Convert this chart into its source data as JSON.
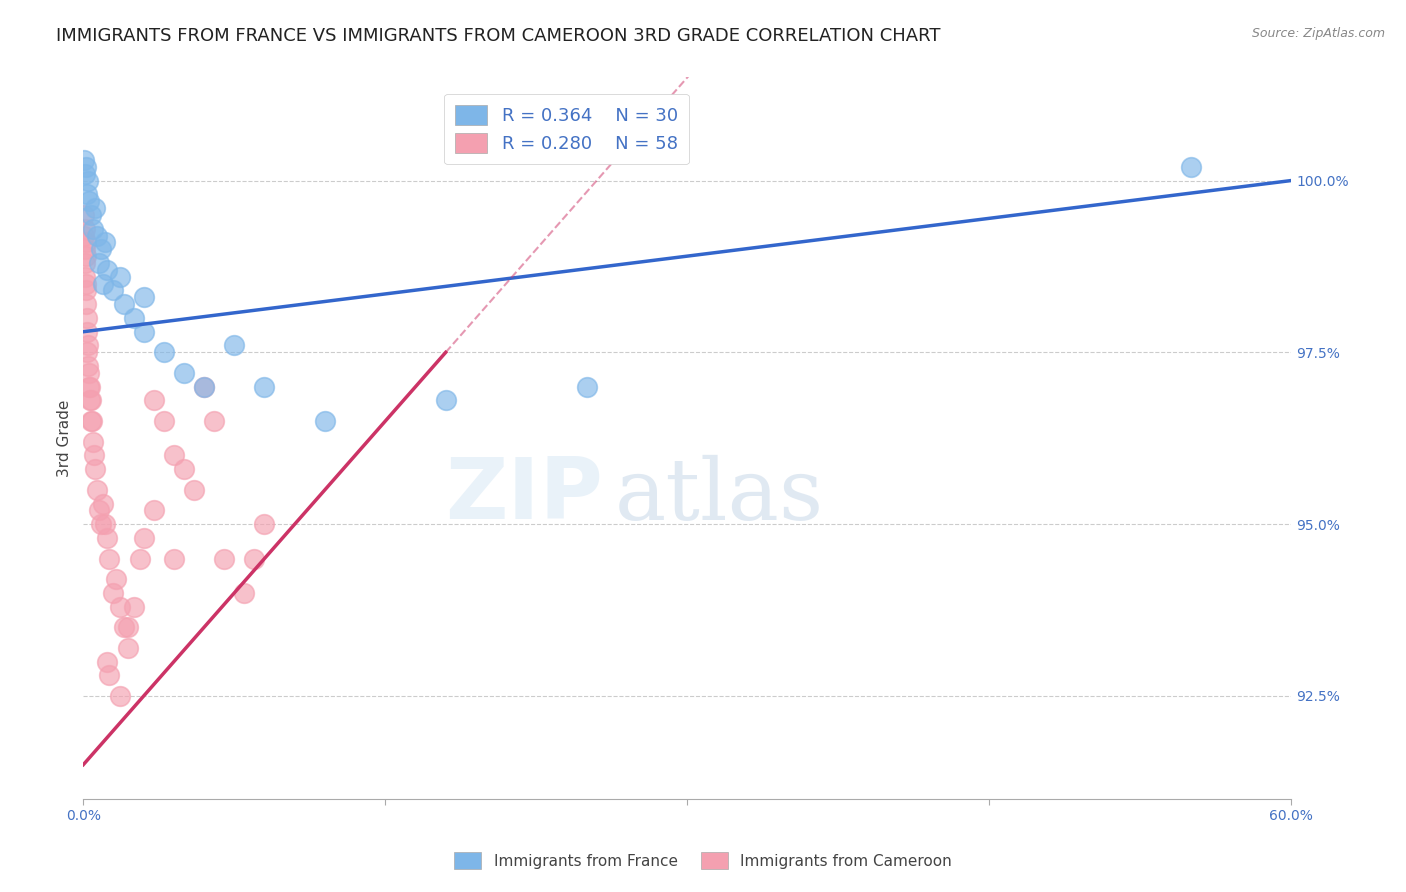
{
  "title": "IMMIGRANTS FROM FRANCE VS IMMIGRANTS FROM CAMEROON 3RD GRADE CORRELATION CHART",
  "source": "Source: ZipAtlas.com",
  "ylabel": "3rd Grade",
  "xlim": [
    0.0,
    60.0
  ],
  "ylim": [
    91.0,
    101.5
  ],
  "y_ticks": [
    92.5,
    95.0,
    97.5,
    100.0
  ],
  "y_tick_labels": [
    "92.5%",
    "95.0%",
    "97.5%",
    "100.0%"
  ],
  "france_color": "#7EB6E8",
  "cameroon_color": "#F4A0B0",
  "france_line_color": "#3366CC",
  "cameroon_line_color": "#CC3366",
  "R_france": 0.364,
  "N_france": 30,
  "R_cameroon": 0.28,
  "N_cameroon": 58,
  "legend_color": "#4472C4",
  "france_x": [
    0.05,
    0.1,
    0.15,
    0.2,
    0.25,
    0.3,
    0.4,
    0.5,
    0.6,
    0.7,
    0.8,
    0.9,
    1.0,
    1.1,
    1.2,
    1.5,
    1.8,
    2.0,
    2.5,
    3.0,
    3.0,
    4.0,
    5.0,
    6.0,
    7.5,
    9.0,
    12.0,
    18.0,
    25.0,
    55.0
  ],
  "france_y": [
    100.3,
    100.1,
    100.2,
    99.8,
    100.0,
    99.7,
    99.5,
    99.3,
    99.6,
    99.2,
    98.8,
    99.0,
    98.5,
    99.1,
    98.7,
    98.4,
    98.6,
    98.2,
    98.0,
    97.8,
    98.3,
    97.5,
    97.2,
    97.0,
    97.6,
    97.0,
    96.5,
    96.8,
    97.0,
    100.2
  ],
  "cameroon_x": [
    0.02,
    0.05,
    0.07,
    0.08,
    0.09,
    0.1,
    0.11,
    0.12,
    0.13,
    0.14,
    0.15,
    0.16,
    0.18,
    0.2,
    0.22,
    0.25,
    0.28,
    0.3,
    0.32,
    0.35,
    0.38,
    0.4,
    0.45,
    0.5,
    0.55,
    0.6,
    0.7,
    0.8,
    0.9,
    1.0,
    1.1,
    1.2,
    1.3,
    1.5,
    1.6,
    1.8,
    2.0,
    2.2,
    2.5,
    2.8,
    3.0,
    3.5,
    4.0,
    4.5,
    5.0,
    5.5,
    6.0,
    7.0,
    8.0,
    9.0,
    1.2,
    1.3,
    1.8,
    2.2,
    3.5,
    4.5,
    6.5,
    8.5
  ],
  "cameroon_y": [
    99.5,
    99.2,
    99.3,
    99.0,
    98.8,
    98.6,
    99.1,
    98.4,
    98.9,
    98.2,
    98.5,
    98.0,
    97.8,
    97.5,
    97.6,
    97.3,
    97.0,
    97.2,
    96.8,
    97.0,
    96.5,
    96.8,
    96.5,
    96.2,
    96.0,
    95.8,
    95.5,
    95.2,
    95.0,
    95.3,
    95.0,
    94.8,
    94.5,
    94.0,
    94.2,
    93.8,
    93.5,
    93.2,
    93.8,
    94.5,
    94.8,
    96.8,
    96.5,
    96.0,
    95.8,
    95.5,
    97.0,
    94.5,
    94.0,
    95.0,
    93.0,
    92.8,
    92.5,
    93.5,
    95.2,
    94.5,
    96.5,
    94.5
  ],
  "france_line_x0": 0.0,
  "france_line_y0": 97.8,
  "france_line_x1": 60.0,
  "france_line_y1": 100.0,
  "cameroon_line_x0": 0.0,
  "cameroon_line_y0": 91.5,
  "cameroon_line_x1": 18.0,
  "cameroon_line_y1": 97.5,
  "watermark_zip": "ZIP",
  "watermark_atlas": "atlas",
  "background_color": "#FFFFFF",
  "grid_color": "#CCCCCC",
  "tick_color": "#4472C4",
  "title_fontsize": 13,
  "axis_label_fontsize": 11,
  "tick_fontsize": 10,
  "legend_fontsize": 13
}
